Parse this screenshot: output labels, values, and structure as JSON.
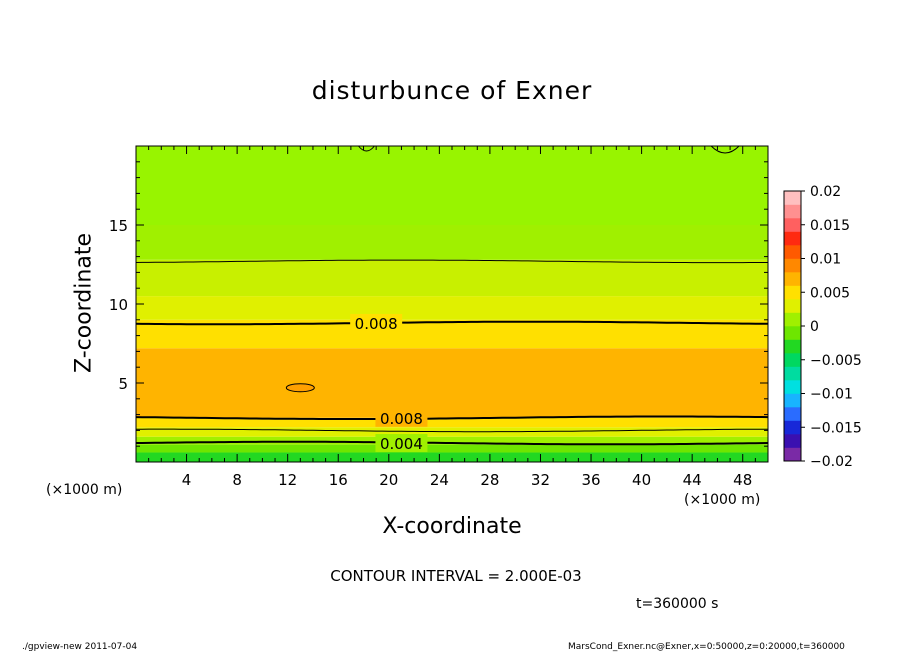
{
  "chart_data": {
    "type": "contour",
    "title": "disturbunce of Exner",
    "xlabel": "X-coordinate",
    "ylabel": "Z-coordinate",
    "x_unit": "(×1000 m)",
    "y_unit": "(×1000 m)",
    "xlim": [
      0,
      50
    ],
    "ylim": [
      0,
      20
    ],
    "x_ticks": [
      4,
      8,
      12,
      16,
      20,
      24,
      28,
      32,
      36,
      40,
      44,
      48
    ],
    "y_ticks": [
      5,
      10,
      15
    ],
    "contour_interval_text": "CONTOUR INTERVAL = 2.000E-03",
    "time_label": "t=360000 s",
    "colorbar": {
      "min": -0.02,
      "max": 0.02,
      "tick_labels": [
        "0.02",
        "0.015",
        "0.01",
        "0.005",
        "0",
        "−0.005",
        "−0.01",
        "−0.015",
        "−0.02"
      ],
      "tick_values": [
        0.02,
        0.015,
        0.01,
        0.005,
        0,
        -0.005,
        -0.01,
        -0.015,
        -0.02
      ],
      "colors_bottom_to_top": [
        "#7a2aa6",
        "#3a10b0",
        "#1828d8",
        "#2a6cff",
        "#18b4ff",
        "#00e0e0",
        "#00dca0",
        "#00d860",
        "#22d822",
        "#6ee600",
        "#a0f000",
        "#e0f000",
        "#ffe000",
        "#ffb400",
        "#ff8800",
        "#ff5a00",
        "#ff2a10",
        "#ff6060",
        "#ff9090",
        "#ffc0c0"
      ]
    },
    "bands": [
      {
        "z_from": 0.0,
        "z_to": 0.6,
        "value": 0.001,
        "color": "#22d822"
      },
      {
        "z_from": 0.6,
        "z_to": 1.1,
        "value": 0.003,
        "color": "#6ee600"
      },
      {
        "z_from": 1.1,
        "z_to": 1.6,
        "value": 0.005,
        "color": "#a0f000"
      },
      {
        "z_from": 1.6,
        "z_to": 2.2,
        "value": 0.007,
        "color": "#e0f000"
      },
      {
        "z_from": 2.2,
        "z_to": 2.8,
        "value": 0.009,
        "color": "#ffe000"
      },
      {
        "z_from": 2.8,
        "z_to": 7.2,
        "value": 0.011,
        "color": "#ffb400"
      },
      {
        "z_from": 7.2,
        "z_to": 9.0,
        "value": 0.009,
        "color": "#ffe000"
      },
      {
        "z_from": 9.0,
        "z_to": 10.5,
        "value": 0.0075,
        "color": "#e0f000"
      },
      {
        "z_from": 10.5,
        "z_to": 12.8,
        "value": 0.006,
        "color": "#c8f000"
      },
      {
        "z_from": 12.8,
        "z_to": 15.0,
        "value": 0.005,
        "color": "#a0f000"
      },
      {
        "z_from": 15.0,
        "z_to": 20.0,
        "value": 0.004,
        "color": "#98f400"
      }
    ],
    "contours": [
      {
        "level": 0.004,
        "label": "0.004",
        "z": 1.2,
        "bold": true
      },
      {
        "level": 0.006,
        "label": "",
        "z": 2.0,
        "bold": false
      },
      {
        "level": 0.008,
        "label": "0.008",
        "z": 2.8,
        "bold": true
      },
      {
        "level": 0.008,
        "label": "0.008",
        "z": 8.8,
        "bold": true
      },
      {
        "level": 0.006,
        "label": "",
        "z": 12.7,
        "bold": false
      }
    ]
  },
  "footer": {
    "left": "./gpview-new  2011-07-04",
    "right": "MarsCond_Exner.nc@Exner,x=0:50000,z=0:20000,t=360000"
  },
  "colors": {
    "frame": "#000000",
    "background": "#ffffff"
  }
}
